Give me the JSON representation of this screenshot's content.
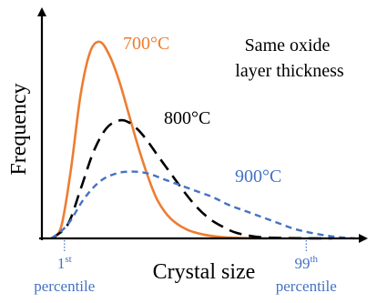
{
  "chart_data": {
    "type": "line",
    "title": "",
    "xlabel": "Crystal size",
    "ylabel": "Frequency",
    "annotation": "Same oxide layer thickness",
    "grid": false,
    "xlim": [
      0,
      1
    ],
    "ylim": [
      0,
      1
    ],
    "series": [
      {
        "name": "700°C",
        "color": "#ED7D31",
        "style": "solid",
        "x": [
          0.03,
          0.06,
          0.09,
          0.12,
          0.15,
          0.18,
          0.21,
          0.24,
          0.27,
          0.3,
          0.33,
          0.36,
          0.4,
          0.45,
          0.5,
          0.55,
          0.6,
          0.65,
          0.7
        ],
        "values": [
          0.0,
          0.06,
          0.35,
          0.73,
          0.95,
          1.0,
          0.93,
          0.8,
          0.63,
          0.46,
          0.31,
          0.19,
          0.1,
          0.045,
          0.02,
          0.008,
          0.003,
          0.001,
          0.0
        ]
      },
      {
        "name": "800°C",
        "color": "#000000",
        "style": "dashed",
        "x": [
          0.03,
          0.08,
          0.12,
          0.16,
          0.2,
          0.24,
          0.27,
          0.3,
          0.33,
          0.36,
          0.4,
          0.44,
          0.48,
          0.52,
          0.56,
          0.6,
          0.65,
          0.7,
          0.8,
          0.9
        ],
        "values": [
          0.0,
          0.07,
          0.25,
          0.44,
          0.56,
          0.6,
          0.59,
          0.55,
          0.49,
          0.42,
          0.33,
          0.24,
          0.16,
          0.1,
          0.06,
          0.03,
          0.012,
          0.004,
          0.001,
          0.0
        ]
      },
      {
        "name": "900°C",
        "color": "#4472C4",
        "style": "dashed",
        "x": [
          0.03,
          0.08,
          0.13,
          0.18,
          0.23,
          0.28,
          0.33,
          0.38,
          0.43,
          0.48,
          0.53,
          0.58,
          0.63,
          0.68,
          0.73,
          0.78,
          0.83,
          0.88,
          0.93,
          0.97
        ],
        "values": [
          0.0,
          0.07,
          0.2,
          0.29,
          0.33,
          0.34,
          0.33,
          0.3,
          0.27,
          0.24,
          0.21,
          0.17,
          0.14,
          0.11,
          0.08,
          0.05,
          0.03,
          0.015,
          0.005,
          0.0
        ]
      }
    ],
    "markers": [
      {
        "position": 0.07,
        "superscript": "st",
        "number": "1",
        "word": "percentile",
        "color": "#4472C4"
      },
      {
        "position": 0.82,
        "superscript": "th",
        "number": "99",
        "word": "percentile",
        "color": "#4472C4"
      }
    ]
  }
}
